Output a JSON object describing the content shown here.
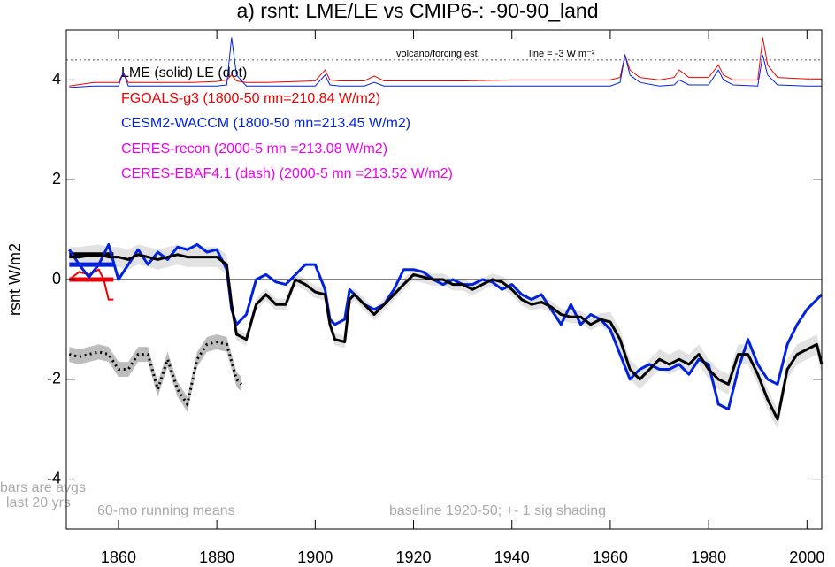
{
  "chart_data": {
    "type": "line",
    "title": "a) rsnt: LME/LE vs CMIP6-: -90-90_land",
    "y_label": "rsnt W/m2",
    "xlim": [
      1849.4,
      2003
    ],
    "ylim": [
      -5,
      5
    ],
    "xticks": [
      1860,
      1880,
      1900,
      1920,
      1940,
      1960,
      1980,
      2000
    ],
    "yticks": [
      -4,
      -2,
      0,
      2,
      4
    ],
    "zero_line": 0,
    "legend_header": "LME (solid)   LE (dot)",
    "x": [
      1850,
      1852,
      1854,
      1856,
      1858,
      1860,
      1862,
      1864,
      1866,
      1868,
      1870,
      1872,
      1874,
      1876,
      1878,
      1880,
      1882,
      1883,
      1884,
      1886,
      1888,
      1890,
      1892,
      1894,
      1896,
      1898,
      1900,
      1902,
      1903,
      1904,
      1906,
      1907,
      1908,
      1910,
      1912,
      1914,
      1916,
      1918,
      1920,
      1922,
      1924,
      1926,
      1928,
      1930,
      1932,
      1934,
      1936,
      1938,
      1940,
      1942,
      1944,
      1946,
      1948,
      1950,
      1952,
      1954,
      1956,
      1958,
      1960,
      1962,
      1964,
      1966,
      1968,
      1970,
      1972,
      1974,
      1976,
      1978,
      1980,
      1982,
      1984,
      1986,
      1988,
      1990,
      1992,
      1994,
      1996,
      1998,
      2000,
      2002,
      2003
    ],
    "series": [
      {
        "color": "#000000",
        "shade": "#e2e2e2",
        "values": [
          0.45,
          0.45,
          0.48,
          0.5,
          0.45,
          0.45,
          0.4,
          0.5,
          0.45,
          0.4,
          0.45,
          0.5,
          0.45,
          0.45,
          0.45,
          0.45,
          0.3,
          -0.5,
          -1.1,
          -1.2,
          -0.5,
          -0.3,
          -0.5,
          -0.5,
          0.0,
          -0.1,
          -0.25,
          -0.3,
          -0.9,
          -1.2,
          -1.25,
          -0.4,
          -0.3,
          -0.5,
          -0.7,
          -0.5,
          -0.3,
          -0.1,
          0.1,
          0.05,
          0.0,
          0.0,
          -0.1,
          -0.1,
          -0.2,
          -0.1,
          0.0,
          -0.05,
          -0.2,
          -0.4,
          -0.5,
          -0.45,
          -0.55,
          -0.7,
          -0.75,
          -0.75,
          -0.9,
          -0.8,
          -0.85,
          -1.2,
          -1.8,
          -2.0,
          -1.8,
          -1.6,
          -1.7,
          -1.6,
          -1.7,
          -1.5,
          -1.8,
          -2.0,
          -2.1,
          -1.5,
          -1.5,
          -1.9,
          -2.4,
          -2.8,
          -1.8,
          -1.5,
          -1.4,
          -1.3,
          -1.7
        ],
        "sigma": [
          0.2,
          0.2,
          0.2,
          0.2,
          0.2,
          0.2,
          0.2,
          0.2,
          0.2,
          0.2,
          0.2,
          0.2,
          0.2,
          0.2,
          0.2,
          0.2,
          0.2,
          0.12,
          0.12,
          0.12,
          0.12,
          0.12,
          0.12,
          0.12,
          0.12,
          0.12,
          0.12,
          0.12,
          0.12,
          0.12,
          0.12,
          0.12,
          0.12,
          0.12,
          0.12,
          0.12,
          0.12,
          0.12,
          0.12,
          0.12,
          0.12,
          0.12,
          0.12,
          0.12,
          0.12,
          0.12,
          0.12,
          0.12,
          0.12,
          0.12,
          0.12,
          0.12,
          0.12,
          0.12,
          0.12,
          0.12,
          0.12,
          0.12,
          0.2,
          0.2,
          0.2,
          0.2,
          0.2,
          0.2,
          0.2,
          0.2,
          0.2,
          0.2,
          0.2,
          0.2,
          0.2,
          0.2,
          0.2,
          0.2,
          0.2,
          0.2,
          0.2,
          0.2,
          0.2,
          0.2,
          0.2
        ]
      },
      {
        "name": "CESM2-WACCM (1800-50 mn=213.45 W/m2)",
        "color": "#0022dd",
        "values": [
          0.6,
          0.3,
          0.05,
          0.3,
          0.7,
          0.0,
          0.3,
          0.6,
          0.3,
          0.55,
          0.4,
          0.65,
          0.6,
          0.7,
          0.55,
          0.6,
          0.2,
          -0.6,
          -0.9,
          -0.7,
          0.0,
          0.1,
          -0.05,
          -0.1,
          0.1,
          0.3,
          0.3,
          -0.2,
          -0.8,
          -0.9,
          -0.8,
          -0.2,
          -0.3,
          -0.5,
          -0.6,
          -0.5,
          -0.2,
          0.2,
          0.2,
          0.15,
          0.0,
          -0.1,
          0.0,
          -0.1,
          -0.1,
          0.0,
          -0.05,
          -0.2,
          -0.1,
          -0.3,
          -0.4,
          -0.3,
          -0.6,
          -0.9,
          -0.5,
          -0.9,
          -0.7,
          -0.8,
          -1.0,
          -1.5,
          -2.0,
          -1.8,
          -1.7,
          -1.8,
          -1.8,
          -1.7,
          -1.9,
          -1.6,
          -1.7,
          -2.5,
          -2.6,
          -1.8,
          -1.2,
          -1.7,
          -2.0,
          -2.1,
          -1.3,
          -0.9,
          -0.6,
          -0.4,
          -0.3
        ]
      }
    ],
    "le": {
      "color": "#000000",
      "shade": "#bdbdbd",
      "x": [
        1850,
        1852,
        1854,
        1856,
        1858,
        1860,
        1862,
        1864,
        1866,
        1868,
        1870,
        1872,
        1874,
        1876,
        1878,
        1880,
        1882,
        1884,
        1885
      ],
      "values": [
        -1.5,
        -1.55,
        -1.5,
        -1.45,
        -1.5,
        -1.8,
        -1.8,
        -1.5,
        -1.5,
        -2.2,
        -1.6,
        -2.2,
        -2.5,
        -1.6,
        -1.3,
        -1.25,
        -1.3,
        -2.0,
        -2.1
      ],
      "sigma": [
        0.15,
        0.15,
        0.15,
        0.15,
        0.15,
        0.15,
        0.15,
        0.15,
        0.15,
        0.15,
        0.15,
        0.15,
        0.15,
        0.15,
        0.15,
        0.15,
        0.15,
        0.15,
        0.15
      ]
    },
    "fgoals": {
      "name": "FGOALS-g3 (1800-50 mn=210.84 W/m2)",
      "color": "#ee0000",
      "x": [
        1850,
        1852,
        1854,
        1856,
        1857,
        1858,
        1859
      ],
      "values": [
        0.0,
        0.15,
        0.1,
        0.2,
        0.0,
        -0.4,
        -0.4
      ]
    },
    "ceres": [
      {
        "name": "CERES-recon (2000-5 mn =213.08 W/m2)",
        "color": "#ee00ee"
      },
      {
        "name": "CERES-EBAF4.1 (dash) (2000-5 mn =213.52 W/m2)",
        "color": "#ee00ee"
      }
    ],
    "bars": {
      "x": [
        1850,
        1859
      ],
      "items": [
        {
          "color": "#000000",
          "value": 0.5
        },
        {
          "color": "#0022dd",
          "value": 0.3
        },
        {
          "color": "#ee0000",
          "value": 0.0
        }
      ]
    },
    "volcano": {
      "label": "volcano/forcing est.",
      "line_label": "line = -3 W m⁻²",
      "refline": 4.4,
      "x": [
        1850,
        1855,
        1860,
        1861,
        1862,
        1865,
        1870,
        1875,
        1880,
        1882,
        1883,
        1884,
        1886,
        1890,
        1900,
        1902,
        1903,
        1905,
        1910,
        1912,
        1914,
        1920,
        1930,
        1940,
        1950,
        1960,
        1962,
        1963,
        1964,
        1966,
        1970,
        1973,
        1974,
        1976,
        1980,
        1982,
        1983,
        1985,
        1990,
        1991,
        1992,
        1994,
        2000,
        2003
      ],
      "series": [
        {
          "color": "#ee0000",
          "values": [
            3.88,
            3.95,
            3.95,
            4.15,
            3.95,
            3.95,
            3.95,
            3.95,
            3.97,
            4.0,
            4.1,
            3.98,
            3.95,
            3.95,
            3.98,
            4.2,
            4.0,
            3.98,
            3.98,
            4.08,
            3.98,
            3.98,
            3.98,
            4.0,
            4.0,
            4.0,
            4.05,
            4.5,
            4.2,
            4.05,
            4.0,
            4.05,
            4.2,
            4.05,
            4.05,
            4.3,
            4.1,
            4.0,
            4.0,
            4.85,
            4.3,
            4.05,
            4.02,
            4.02
          ]
        },
        {
          "color": "#0022dd",
          "values": [
            3.85,
            3.88,
            3.88,
            4.15,
            3.88,
            3.88,
            3.88,
            3.88,
            3.88,
            3.9,
            4.85,
            4.1,
            3.88,
            3.88,
            3.88,
            4.1,
            3.9,
            3.88,
            3.88,
            3.95,
            3.88,
            3.88,
            3.88,
            3.88,
            3.88,
            3.88,
            3.95,
            4.5,
            4.1,
            3.95,
            3.88,
            3.9,
            4.0,
            3.9,
            3.9,
            4.2,
            4.0,
            3.9,
            3.88,
            4.5,
            4.1,
            3.9,
            3.88,
            3.88
          ]
        }
      ]
    },
    "notes": {
      "bars1": "bars are avgs",
      "bars2": "last 20 yrs",
      "running": "60-mo running means",
      "baseline": "baseline 1920-50; +- 1 sig shading"
    }
  }
}
